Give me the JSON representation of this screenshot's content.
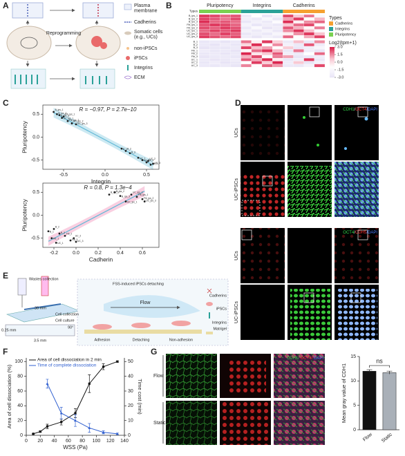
{
  "panel_letters": [
    "A",
    "B",
    "C",
    "D",
    "E",
    "F",
    "G"
  ],
  "panel_a": {
    "process": "Reprogramming",
    "legend": [
      [
        "Plasma",
        "membrane"
      ],
      [
        "Cadherins"
      ],
      [
        "Somatic cells",
        "(e.g., UCs)"
      ],
      [
        "non-iPSCs"
      ],
      [
        "iPSCs"
      ],
      [
        "Integrins"
      ],
      [
        "ECM"
      ]
    ]
  },
  "panel_d": {
    "sets": [
      {
        "title": [
          {
            "text": "CDH1",
            "color": "#33d94a"
          },
          {
            "text": "/",
            "color": "#ffffff"
          },
          {
            "text": "OCT4",
            "color": "#ff3030"
          },
          {
            "text": "/DAPI",
            "color": "#4a7bff"
          }
        ],
        "rows": [
          "UCs",
          "UC-iPSCs"
        ]
      },
      {
        "title": [
          {
            "text": "OCT4",
            "color": "#33d94a"
          },
          {
            "text": "/",
            "color": "#ffffff"
          },
          {
            "text": "CDH5",
            "color": "#ff3030"
          },
          {
            "text": "/DAPI",
            "color": "#4a7bff"
          }
        ],
        "rows": [
          "UCs",
          "UC-iPSCs"
        ]
      }
    ]
  },
  "panel_e": {
    "wastes": "Wastes collection",
    "length": "30 mm",
    "collection": "Cell collection",
    "culture": "Cell culture",
    "height": "0.25 mm",
    "width": "3.5 mm",
    "angle": "90°",
    "title": "FSS-induced iPSCs detaching",
    "flow": "Flow",
    "stages": [
      "Adhesion",
      "Detaching",
      "Non-adhesion"
    ],
    "legend": [
      "Cadherins",
      "iPSCs",
      "Integrins",
      "Matrigel"
    ]
  },
  "panel_g": {
    "title": [
      {
        "text": "CDH1/ ",
        "color": "#33d94a"
      },
      {
        "text": "OCT4/ ",
        "color": "#ff3030"
      },
      {
        "text": "DAPI",
        "color": "#4a7bff"
      }
    ],
    "rows": [
      "Flow",
      "Static"
    ]
  },
  "chart_data": [
    {
      "type": "heatmap",
      "rows": [
        "B_ips_1",
        "B_ips_2",
        "B_ips_3",
        "Fib_ips_1",
        "Fib_ips_2",
        "UC_ips_1",
        "UC_ips_2",
        "UC_ips_3",
        "B_1",
        "B_2",
        "B_3",
        "Fib_1",
        "Fib_2",
        "Fib_3",
        "UC_1",
        "UC_2",
        "UC_3"
      ],
      "types_title": "Types",
      "types": [
        {
          "name": "Cadherins",
          "color": "#f5a030"
        },
        {
          "name": "Integrins",
          "color": "#2aa198"
        },
        {
          "name": "Pluripotency",
          "color": "#7ad151"
        }
      ],
      "groups": [
        {
          "name": "Pluripotency",
          "color": "#7ad151",
          "values": [
            [
              2.6,
              2.4,
              2.0,
              2.2
            ],
            [
              2.5,
              2.2,
              1.8,
              2.4
            ],
            [
              2.8,
              2.0,
              2.2,
              1.9
            ],
            [
              2.2,
              2.6,
              2.4,
              2.0
            ],
            [
              2.4,
              2.1,
              2.6,
              2.3
            ],
            [
              2.0,
              2.5,
              2.2,
              2.6
            ],
            [
              2.3,
              1.9,
              2.5,
              2.1
            ],
            [
              2.6,
              2.3,
              2.0,
              2.4
            ],
            [
              -2.8,
              -2.5,
              -3,
              -2.6
            ],
            [
              -2.6,
              -3,
              -2.4,
              -2.8
            ],
            [
              -3,
              -2.7,
              -2.8,
              -2.5
            ],
            [
              -2.4,
              -2.8,
              -2.6,
              -3
            ],
            [
              -2.7,
              -2.5,
              -2.9,
              -2.6
            ],
            [
              -2.9,
              -2.6,
              -2.5,
              -2.8
            ],
            [
              -2.5,
              -2.9,
              -2.7,
              -2.4
            ],
            [
              -2.8,
              -2.4,
              -3,
              -2.7
            ],
            [
              -2.6,
              -2.8,
              -2.5,
              -2.9
            ]
          ]
        },
        {
          "name": "Integrins",
          "color": "#2aa198",
          "values": [
            [
              -2.5,
              -1.0,
              -2.8,
              -2.0
            ],
            [
              -2.2,
              -2.6,
              -1.5,
              -2.8
            ],
            [
              -2.8,
              -2.0,
              -2.5,
              -1.2
            ],
            [
              -1.8,
              -2.8,
              -2.2,
              -2.6
            ],
            [
              -2.6,
              -1.4,
              -2.9,
              -2.3
            ],
            [
              -2.0,
              -2.5,
              -1.8,
              -2.7
            ],
            [
              -2.7,
              -2.2,
              -2.6,
              -1.6
            ],
            [
              -2.3,
              -2.9,
              -2.0,
              -2.5
            ],
            [
              1.8,
              -0.5,
              2.6,
              0.4
            ],
            [
              0.2,
              2.8,
              -1.0,
              1.5
            ],
            [
              2.5,
              0.8,
              1.2,
              -0.8
            ],
            [
              -0.6,
              1.9,
              2.7,
              0.9
            ],
            [
              2.9,
              -0.2,
              0.6,
              2.2
            ],
            [
              1.0,
              2.4,
              -1.2,
              1.7
            ],
            [
              2.2,
              1.1,
              2.8,
              -0.4
            ],
            [
              -1.0,
              2.6,
              0.5,
              2.9
            ],
            [
              1.6,
              -0.8,
              2.0,
              1.3
            ]
          ]
        },
        {
          "name": "Cadherins",
          "color": "#f5a030",
          "values": [
            [
              2.4,
              0.5,
              1.8,
              -1.5
            ],
            [
              1.2,
              2.6,
              -0.8,
              0.9
            ],
            [
              2.8,
              -0.5,
              1.5,
              2.0
            ],
            [
              0.6,
              1.9,
              2.4,
              -1.0
            ],
            [
              2.2,
              1.0,
              -0.6,
              1.7
            ],
            [
              1.5,
              2.7,
              0.8,
              -1.2
            ],
            [
              -0.4,
              1.4,
              2.6,
              0.7
            ],
            [
              2.0,
              -1.0,
              1.1,
              2.5
            ],
            [
              -2.5,
              0.8,
              -2.8,
              1.5
            ],
            [
              -2.0,
              -2.6,
              2.2,
              -2.4
            ],
            [
              0.5,
              -2.8,
              -2.2,
              -1.6
            ],
            [
              -2.7,
              1.8,
              -2.4,
              -2.9
            ],
            [
              -2.2,
              -2.5,
              -1.0,
              2.0
            ],
            [
              1.2,
              -2.9,
              -2.6,
              -2.3
            ],
            [
              -2.8,
              -2.2,
              2.6,
              -2.7
            ],
            [
              -2.4,
              0.6,
              -2.9,
              -2.0
            ],
            [
              -2.6,
              -2.7,
              -1.8,
              2.4
            ]
          ]
        }
      ],
      "colorbar": {
        "title": "Log2(tpm+1)",
        "lim": [
          -3,
          3
        ],
        "ticks": [
          {
            "value": 3,
            "label": "3.0"
          },
          {
            "value": 1.5,
            "label": "1.5"
          },
          {
            "value": 0,
            "label": "0.0"
          },
          {
            "value": -1.5,
            "label": "-1.5"
          },
          {
            "value": -3,
            "label": "-3.0"
          }
        ]
      }
    },
    {
      "type": "scatter",
      "annotation": "R = −0.97, P = 2.7e−10",
      "x_label": "Integrin",
      "y_label": "Pluripotency",
      "labels": [
        "B_ips_1",
        "B_ips_2",
        "B_ips_3",
        "Fib_ips_1",
        "Fib_ips_2",
        "UC_ips_1",
        "UC_ips_2",
        "UC_ips_3",
        "B_1",
        "B_2",
        "B_3",
        "Fib_1",
        "Fib_2",
        "Fib_3",
        "UC_1",
        "UC_2",
        "UC_3"
      ],
      "x": [
        -0.62,
        -0.58,
        -0.55,
        -0.5,
        -0.45,
        -0.52,
        -0.4,
        -0.35,
        0.2,
        0.25,
        0.3,
        0.45,
        0.5,
        0.55,
        0.4,
        0.52,
        0.58
      ],
      "values": [
        0.55,
        0.5,
        0.48,
        0.45,
        0.35,
        0.42,
        0.3,
        0.28,
        -0.25,
        -0.3,
        -0.35,
        -0.5,
        -0.55,
        -0.6,
        -0.45,
        -0.52,
        -0.58
      ],
      "xlim": [
        -0.75,
        0.65
      ],
      "ylim": [
        -0.7,
        0.7
      ],
      "xticks": [
        -0.5,
        {
          "value": 0,
          "label": "0.0"
        },
        0.5
      ],
      "yticks": [
        -0.5,
        {
          "value": 0,
          "label": "0.0"
        },
        0.5
      ],
      "color": "#222222",
      "fit_color": "#5fb8d6",
      "band_color": "#bfe3ef"
    },
    {
      "type": "scatter",
      "annotation": "R = 0.8, P = 1.3e−4",
      "x_label": "Cadherin",
      "y_label": "Pluripotency",
      "labels": [
        "B_ips_1",
        "B_ips_2",
        "B_ips_3",
        "Fib_ips_1",
        "Fib_ips_2",
        "UC_ips_1",
        "UC_ips_2",
        "UC_ips_3",
        "B_1",
        "B_2",
        "B_3",
        "Fib_1",
        "Fib_2",
        "Fib_3",
        "UC_1",
        "UC_2",
        "UC_3"
      ],
      "x": [
        0.3,
        0.35,
        0.4,
        0.55,
        0.6,
        0.45,
        0.5,
        0.62,
        -0.25,
        -0.2,
        -0.15,
        -0.22,
        -0.1,
        -0.05,
        -0.18,
        -0.02,
        0.0
      ],
      "values": [
        0.45,
        0.5,
        0.42,
        0.4,
        0.35,
        0.3,
        0.45,
        0.3,
        -0.35,
        -0.3,
        -0.4,
        -0.5,
        -0.45,
        -0.55,
        -0.6,
        -0.5,
        -0.58
      ],
      "xlim": [
        -0.3,
        0.75
      ],
      "ylim": [
        -0.7,
        0.7
      ],
      "xticks": [
        -0.2,
        {
          "value": 0,
          "label": "0.0"
        },
        0.2,
        0.4,
        0.6
      ],
      "yticks": [
        -0.5,
        {
          "value": 0,
          "label": "0.0"
        },
        0.5
      ],
      "color": "#222222",
      "fit_color": "#5fb8d6",
      "band_color": "#f7c3d9"
    },
    {
      "type": "line",
      "x_label": "WSS (Pa)",
      "y_label": "Area of cell dissociation (%)",
      "y2_label": "Time cost (min)",
      "xlim": [
        0,
        140
      ],
      "xticks": [
        0,
        20,
        40,
        60,
        80,
        100,
        120,
        140
      ],
      "ylim": [
        0,
        105
      ],
      "yticks": [
        0,
        20,
        40,
        60,
        80,
        100
      ],
      "y2lim": [
        0,
        52.5
      ],
      "y2ticks": [
        0,
        10,
        20,
        30,
        40,
        50
      ],
      "series": [
        {
          "name": "Area of cell dissociation in 2 min",
          "color": "#111111",
          "x": [
            10,
            20,
            30,
            50,
            70,
            90,
            110,
            130
          ],
          "values": [
            2,
            5,
            12,
            18,
            30,
            70,
            93,
            100
          ],
          "errors": [
            0.5,
            1,
            3,
            4,
            6,
            12,
            4,
            1
          ]
        },
        {
          "name": "Time of complete dissociation",
          "color": "#2f5fd0",
          "axis": "y2",
          "x": [
            30,
            50,
            70,
            90,
            110,
            130
          ],
          "values": [
            35,
            15,
            10,
            5,
            2,
            1
          ],
          "errors": [
            3,
            4,
            4,
            3,
            1,
            0.5
          ]
        }
      ]
    },
    {
      "type": "bar",
      "y_label": "Mean gray value of CDH1",
      "annotation": "ns",
      "categories": [
        "Flow",
        "Static"
      ],
      "values": [
        12,
        11.7
      ],
      "errors": [
        0.3,
        0.3
      ],
      "colors": [
        "#111111",
        "#a9b0b8"
      ],
      "ylim": [
        0,
        15
      ],
      "yticks": [
        0,
        5,
        10,
        15
      ]
    }
  ]
}
